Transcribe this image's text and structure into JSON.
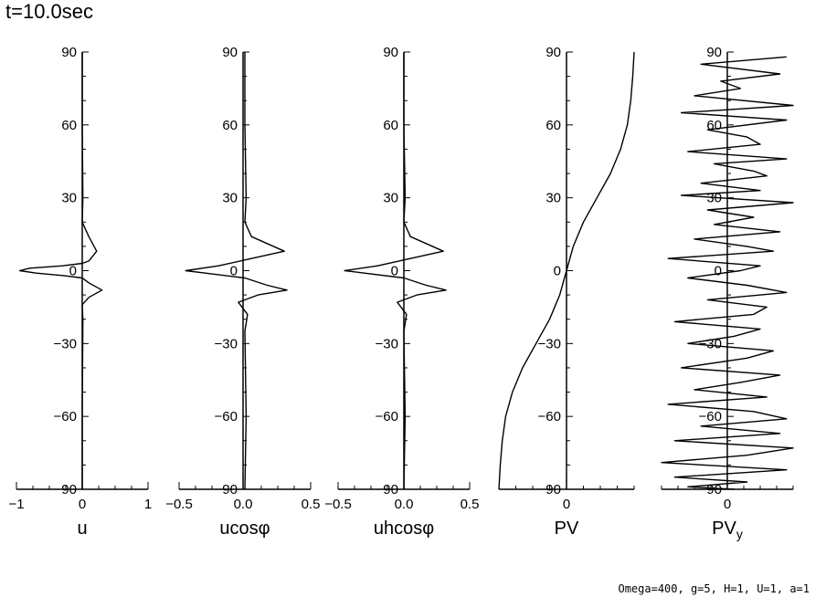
{
  "header": {
    "title": "t=10.0sec"
  },
  "footer": {
    "params": "Omega=400, g=5, H=1, U=1, a=1"
  },
  "chart_data": [
    {
      "type": "line",
      "xlabel": "u",
      "ylim": [
        -90,
        90
      ],
      "xlim": [
        -1,
        1
      ],
      "yticks": [
        90,
        60,
        30,
        0,
        -30,
        -60,
        -90
      ],
      "xticks": [
        "-1",
        "0",
        "1"
      ],
      "series": [
        {
          "x": [
            0,
            0,
            0.01,
            0,
            0.1,
            0.22,
            0.1,
            0,
            -0.3,
            -0.8,
            -0.95,
            -0.7,
            -0.3,
            0,
            0.1,
            0.3,
            0.1,
            0,
            0.01,
            0,
            0
          ],
          "y": [
            90,
            60,
            30,
            20,
            14,
            8,
            4,
            3,
            2,
            1,
            0,
            -1,
            -2,
            -3,
            -5,
            -8,
            -11,
            -14,
            -20,
            -60,
            -90
          ]
        }
      ]
    },
    {
      "type": "line",
      "xlabel": "ucosφ",
      "ylim": [
        -90,
        90
      ],
      "xlim": [
        -0.5,
        0.5
      ],
      "yticks": [
        90,
        60,
        30,
        0,
        -30,
        -60,
        -90
      ],
      "xticks": [
        "-0.5",
        "0.0",
        "0.5"
      ],
      "series": [
        {
          "x": [
            0,
            0,
            0.01,
            0,
            0.05,
            0.3,
            0.05,
            -0.2,
            -0.45,
            -0.3,
            0,
            0.17,
            0.32,
            0.1,
            -0.05,
            0.02,
            0,
            0.01,
            0
          ],
          "y": [
            90,
            60,
            30,
            20,
            14,
            8,
            5,
            2,
            0,
            -1,
            -3,
            -6,
            -8,
            -10,
            -13,
            -18,
            -25,
            -60,
            -90
          ]
        }
      ]
    },
    {
      "type": "line",
      "xlabel": "uhcosφ",
      "ylim": [
        -90,
        90
      ],
      "xlim": [
        -0.5,
        0.5
      ],
      "yticks": [
        90,
        60,
        30,
        0,
        -30,
        -60,
        -90
      ],
      "xticks": [
        "-0.5",
        "0.0",
        "0.5"
      ],
      "series": [
        {
          "x": [
            0,
            0,
            0.01,
            0,
            0.05,
            0.3,
            0.05,
            -0.2,
            -0.45,
            -0.3,
            0,
            0.17,
            0.32,
            0.1,
            -0.05,
            0.02,
            0,
            0.01,
            0
          ],
          "y": [
            90,
            60,
            30,
            20,
            14,
            8,
            5,
            2,
            0,
            -1,
            -3,
            -6,
            -8,
            -10,
            -13,
            -18,
            -25,
            -60,
            -90
          ]
        }
      ]
    },
    {
      "type": "line",
      "xlabel": "PV",
      "ylim": [
        -90,
        90
      ],
      "xlim": [
        -1,
        1
      ],
      "yticks": [
        90,
        60,
        30,
        0,
        -30,
        -60,
        -90
      ],
      "xticks": [
        "0"
      ],
      "series": [
        {
          "x": [
            -1,
            -0.98,
            -0.95,
            -0.9,
            -0.8,
            -0.65,
            -0.45,
            -0.25,
            -0.1,
            0,
            0.1,
            0.25,
            0.45,
            0.65,
            0.8,
            0.9,
            0.95,
            0.98,
            1
          ],
          "y": [
            -90,
            -80,
            -70,
            -60,
            -50,
            -40,
            -30,
            -20,
            -10,
            0,
            10,
            20,
            30,
            40,
            50,
            60,
            70,
            80,
            90
          ]
        }
      ]
    },
    {
      "type": "line",
      "xlabel": "PV",
      "xlabel_sub": "y",
      "ylim": [
        -90,
        90
      ],
      "xlim": [
        -1,
        1
      ],
      "yticks": [
        90,
        60,
        30,
        0,
        -30,
        -60,
        -90
      ],
      "xticks": [
        "0"
      ],
      "series": [
        {
          "x": [
            0.9,
            -0.4,
            0.8,
            -0.1,
            0.2,
            -0.5,
            1.0,
            -0.7,
            0.9,
            -0.3,
            0.3,
            0.5,
            -0.6,
            0.9,
            -0.2,
            0.4,
            0.6,
            -0.4,
            0.5,
            -0.7,
            1.0,
            -0.3,
            0.4,
            -0.2,
            0.8,
            -0.5,
            0.3,
            0.7,
            -0.9,
            0.5,
            0.2,
            -0.6,
            0.3,
            0.9,
            -0.3,
            0.6,
            0.4,
            -0.8,
            0.5,
            0.1,
            -0.6,
            0.7,
            0.3,
            -0.7,
            0.8,
            0.2,
            -0.5,
            0.6,
            -0.9,
            0.4,
            0.9,
            -0.4,
            0.8,
            -0.8,
            1.0,
            0.3,
            -1.0,
            0.9,
            -0.8,
            0.3,
            -0.6,
            0.1
          ],
          "y": [
            88,
            85,
            81,
            78,
            75,
            72,
            68,
            65,
            62,
            58,
            55,
            52,
            49,
            46,
            44,
            41,
            39,
            36,
            33,
            31,
            28,
            25,
            22,
            19,
            16,
            13,
            10,
            8,
            5,
            2,
            0,
            -3,
            -6,
            -9,
            -12,
            -15,
            -18,
            -21,
            -24,
            -27,
            -30,
            -33,
            -36,
            -40,
            -43,
            -46,
            -49,
            -52,
            -55,
            -58,
            -61,
            -64,
            -67,
            -70,
            -73,
            -76,
            -79,
            -82,
            -85,
            -87,
            -89,
            -90
          ]
        }
      ]
    }
  ]
}
